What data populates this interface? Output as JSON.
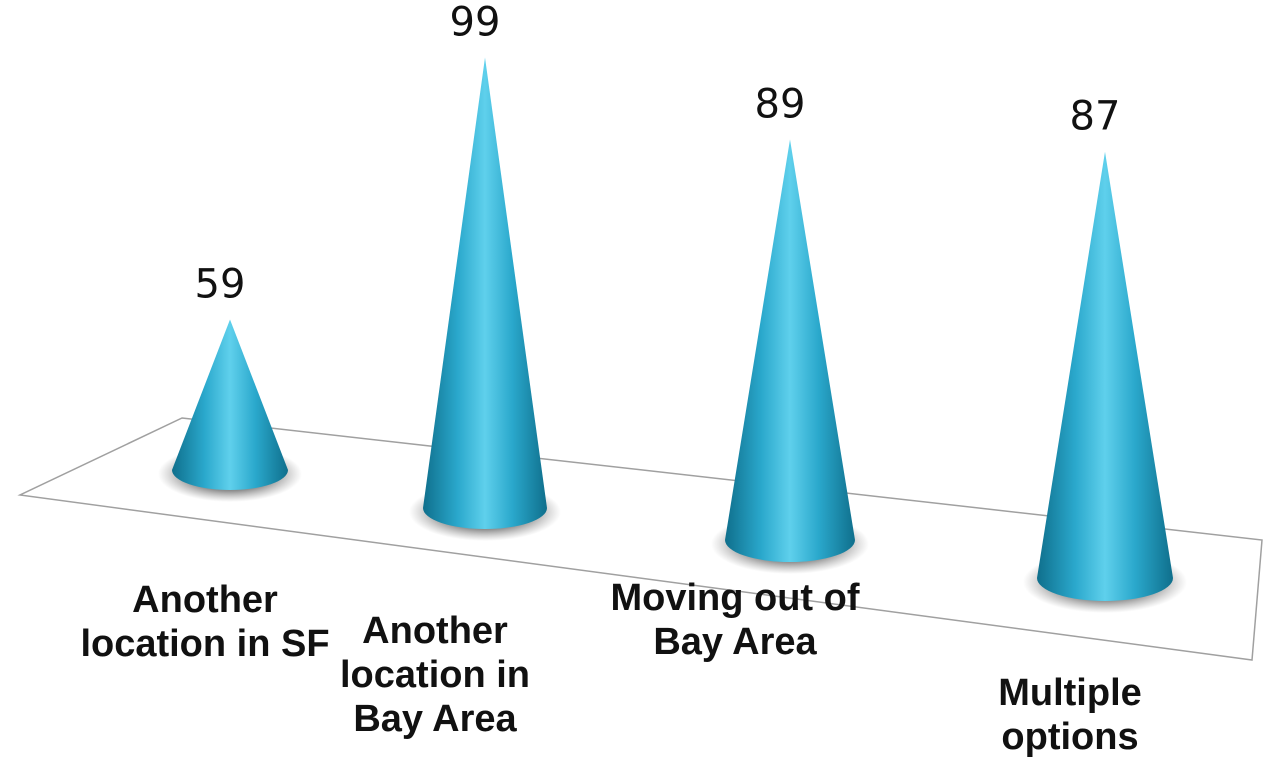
{
  "chart_data": {
    "type": "bar",
    "style": "3d-cone",
    "categories": [
      [
        "Another",
        "location in SF"
      ],
      [
        "Another",
        "location in",
        "Bay Area"
      ],
      [
        "Moving out of",
        "Bay Area"
      ],
      [
        "Multiple",
        "options"
      ]
    ],
    "values": [
      59,
      99,
      89,
      87
    ],
    "ylim": [
      0,
      100
    ],
    "grid": false,
    "legend": "none",
    "colors": {
      "cone_light": "#5fd0ec",
      "cone_mid": "#2aa8cc",
      "cone_dark": "#0f6f8c",
      "floor_line": "#a0a0a0"
    }
  }
}
